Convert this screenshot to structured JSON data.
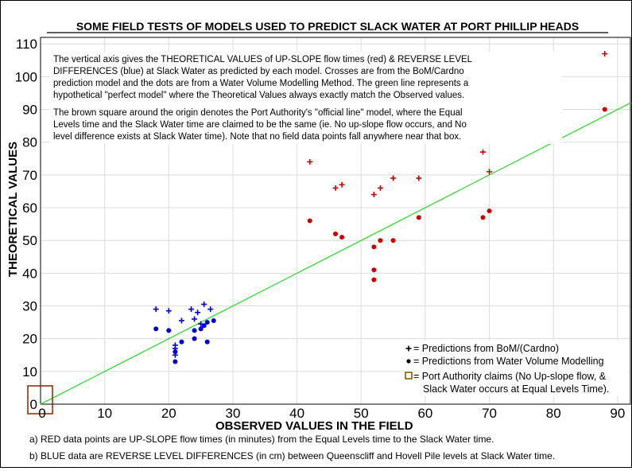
{
  "chart_data": {
    "type": "scatter",
    "title": "SOME FIELD TESTS OF MODELS USED TO PREDICT SLACK WATER AT PORT PHILLIP HEADS",
    "xlabel": "OBSERVED VALUES IN THE FIELD",
    "ylabel": "THEORETICAL VALUES",
    "xlim": [
      0,
      92
    ],
    "ylim": [
      0,
      112
    ],
    "x_ticks": [
      0,
      10,
      20,
      30,
      40,
      50,
      60,
      70,
      80,
      90
    ],
    "y_ticks": [
      0,
      10,
      20,
      30,
      40,
      50,
      60,
      70,
      80,
      90,
      100,
      110
    ],
    "grid": true,
    "series": [
      {
        "color": "#cc0000",
        "marker": "cross",
        "points": [
          [
            42,
            74
          ],
          [
            46,
            66
          ],
          [
            47,
            67
          ],
          [
            52,
            64
          ],
          [
            53,
            66
          ],
          [
            55,
            69
          ],
          [
            59,
            69
          ],
          [
            69,
            77
          ],
          [
            70,
            71
          ],
          [
            88,
            107
          ]
        ]
      },
      {
        "color": "#cc0000",
        "marker": "dot",
        "points": [
          [
            42,
            56
          ],
          [
            46,
            52
          ],
          [
            47,
            51
          ],
          [
            52,
            48
          ],
          [
            53,
            50
          ],
          [
            55,
            50
          ],
          [
            59,
            57
          ],
          [
            52,
            41
          ],
          [
            52,
            38
          ],
          [
            69,
            57
          ],
          [
            70,
            59
          ],
          [
            88,
            90
          ]
        ]
      },
      {
        "color": "#0000cc",
        "marker": "cross",
        "points": [
          [
            18,
            29
          ],
          [
            20,
            28.5
          ],
          [
            23.5,
            29
          ],
          [
            24.5,
            28
          ],
          [
            25.5,
            30.5
          ],
          [
            26.5,
            29
          ],
          [
            22,
            25.5
          ],
          [
            24,
            26
          ],
          [
            25,
            24.5
          ],
          [
            21,
            18
          ],
          [
            21,
            17
          ],
          [
            21,
            15
          ]
        ]
      },
      {
        "color": "#0000cc",
        "marker": "dot",
        "points": [
          [
            18,
            23
          ],
          [
            20,
            22.5
          ],
          [
            22,
            19
          ],
          [
            24,
            22.5
          ],
          [
            25,
            23
          ],
          [
            25.5,
            24
          ],
          [
            26,
            25
          ],
          [
            27,
            25.5
          ],
          [
            24,
            20
          ],
          [
            26,
            19
          ],
          [
            21,
            16
          ],
          [
            21,
            13
          ]
        ]
      }
    ],
    "reference_line": {
      "color": "#33dd33",
      "from": [
        0,
        0
      ],
      "to": [
        92,
        92
      ]
    },
    "official_box": {
      "color": "#8b2500",
      "center": [
        0,
        0
      ]
    },
    "legend": {
      "placement": "bottom-right",
      "items": [
        {
          "marker": "cross",
          "label": "= Predictions from BoM/(Cardno)"
        },
        {
          "marker": "dot",
          "label": "= Predictions from Water Volume Modelling"
        },
        {
          "marker": "square",
          "label": "= Port Authority claims (No Up-slope flow, &"
        },
        {
          "marker": "none",
          "label": "Slack Water occurs at Equal Levels Time)."
        }
      ]
    },
    "annotations": {
      "box_line1": "The vertical axis gives the THEORETICAL VALUES of UP-SLOPE flow times (red) & REVERSE LEVEL",
      "box_line2": "DIFFERENCES (blue) at Slack Water as predicted by each model. Crosses are from the BoM/Cardno",
      "box_line3": "prediction model and the dots are from a Water Volume Modelling Method. The green line represents a",
      "box_line4": "hypothetical \"perfect model\" where the Theoretical Values always exactly match the Observed values.",
      "box_line5": "The brown square around the origin denotes the Port Authority's \"official line\" model, where the Equal",
      "box_line6": "Levels time and the Slack Water time are claimed to be the same (ie. No up-slope flow occurs, and No",
      "box_line7": "level difference exists at Slack Water time). Note that no field data points fall anywhere near that box."
    },
    "footnotes": {
      "a": "a) RED data points are UP-SLOPE flow times (in minutes) from the Equal Levels time to the Slack Water time.",
      "b": "b) BLUE data are REVERSE LEVEL DIFFERENCES (in cm) between Queenscliff and Hovell Pile levels at Slack Water time."
    }
  }
}
